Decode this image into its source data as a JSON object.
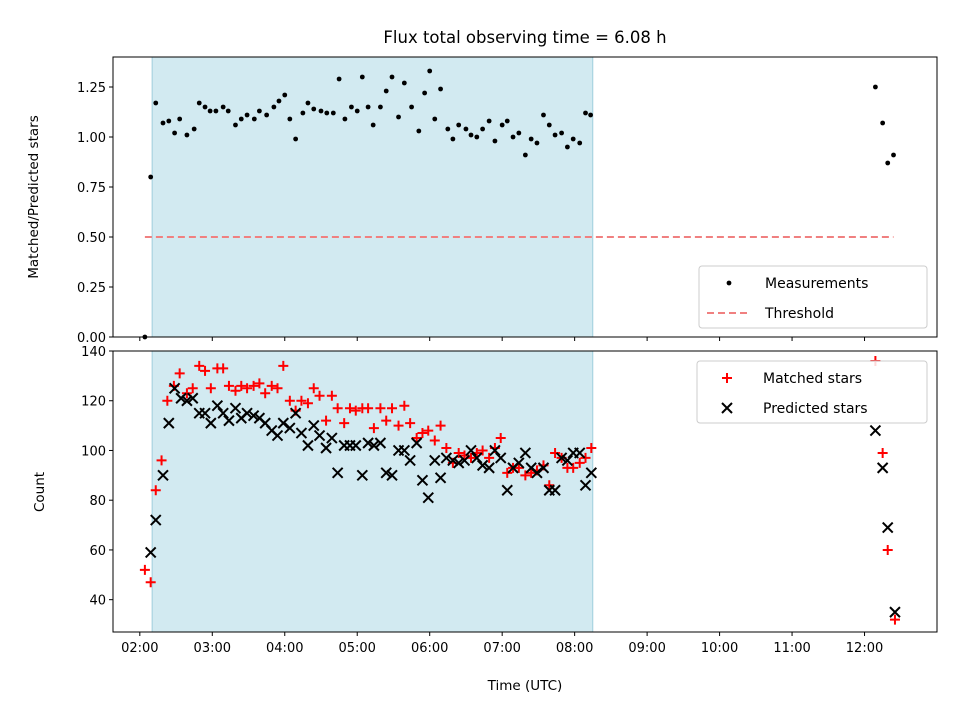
{
  "chart_data": [
    {
      "type": "scatter",
      "title": "Flux total observing time = 6.08 h",
      "ylabel": "Matched/Predicted stars",
      "xlabel": "",
      "xlim": [
        1.63,
        13.0
      ],
      "ylim": [
        0,
        1.4
      ],
      "yticks": [
        0.0,
        0.25,
        0.5,
        0.75,
        1.0,
        1.25
      ],
      "ytick_labels": [
        "0.00",
        "0.25",
        "0.50",
        "0.75",
        "1.00",
        "1.25"
      ],
      "shaded_interval": [
        2.17,
        8.25
      ],
      "shaded_color": "#add8e6",
      "legend_position": "lower right",
      "series": [
        {
          "name": "Measurements",
          "marker": "dot",
          "color": "#000000",
          "points": [
            [
              2.07,
              0.0
            ],
            [
              2.15,
              0.8
            ],
            [
              2.22,
              1.17
            ],
            [
              2.32,
              1.07
            ],
            [
              2.4,
              1.08
            ],
            [
              2.48,
              1.02
            ],
            [
              2.55,
              1.09
            ],
            [
              2.65,
              1.01
            ],
            [
              2.75,
              1.04
            ],
            [
              2.82,
              1.17
            ],
            [
              2.9,
              1.15
            ],
            [
              2.97,
              1.13
            ],
            [
              3.05,
              1.13
            ],
            [
              3.15,
              1.15
            ],
            [
              3.22,
              1.13
            ],
            [
              3.32,
              1.06
            ],
            [
              3.4,
              1.09
            ],
            [
              3.48,
              1.11
            ],
            [
              3.58,
              1.09
            ],
            [
              3.65,
              1.13
            ],
            [
              3.75,
              1.11
            ],
            [
              3.85,
              1.15
            ],
            [
              3.92,
              1.18
            ],
            [
              4.0,
              1.21
            ],
            [
              4.07,
              1.09
            ],
            [
              4.15,
              0.99
            ],
            [
              4.25,
              1.12
            ],
            [
              4.32,
              1.17
            ],
            [
              4.4,
              1.14
            ],
            [
              4.5,
              1.13
            ],
            [
              4.58,
              1.12
            ],
            [
              4.67,
              1.12
            ],
            [
              4.75,
              1.29
            ],
            [
              4.83,
              1.09
            ],
            [
              4.92,
              1.15
            ],
            [
              5.0,
              1.13
            ],
            [
              5.07,
              1.3
            ],
            [
              5.15,
              1.15
            ],
            [
              5.22,
              1.06
            ],
            [
              5.32,
              1.15
            ],
            [
              5.4,
              1.23
            ],
            [
              5.48,
              1.3
            ],
            [
              5.57,
              1.1
            ],
            [
              5.65,
              1.27
            ],
            [
              5.75,
              1.15
            ],
            [
              5.85,
              1.03
            ],
            [
              5.93,
              1.22
            ],
            [
              6.0,
              1.33
            ],
            [
              6.07,
              1.09
            ],
            [
              6.15,
              1.24
            ],
            [
              6.25,
              1.04
            ],
            [
              6.32,
              0.99
            ],
            [
              6.4,
              1.06
            ],
            [
              6.5,
              1.04
            ],
            [
              6.57,
              1.01
            ],
            [
              6.65,
              1.0
            ],
            [
              6.73,
              1.04
            ],
            [
              6.82,
              1.08
            ],
            [
              6.9,
              0.98
            ],
            [
              7.0,
              1.06
            ],
            [
              7.07,
              1.08
            ],
            [
              7.15,
              1.0
            ],
            [
              7.23,
              1.02
            ],
            [
              7.32,
              0.91
            ],
            [
              7.4,
              0.99
            ],
            [
              7.48,
              0.97
            ],
            [
              7.57,
              1.11
            ],
            [
              7.65,
              1.06
            ],
            [
              7.73,
              1.01
            ],
            [
              7.82,
              1.02
            ],
            [
              7.9,
              0.95
            ],
            [
              7.98,
              0.99
            ],
            [
              8.07,
              0.97
            ],
            [
              8.15,
              1.12
            ],
            [
              8.22,
              1.11
            ],
            [
              12.15,
              1.25
            ],
            [
              12.25,
              1.07
            ],
            [
              12.32,
              0.87
            ],
            [
              12.4,
              0.91
            ]
          ]
        },
        {
          "name": "Threshold",
          "marker": "dashed-line",
          "color": "#f08080",
          "points": [
            [
              2.07,
              0.5
            ],
            [
              12.4,
              0.5
            ]
          ]
        }
      ]
    },
    {
      "type": "scatter",
      "title": "",
      "ylabel": "Count",
      "xlabel": "Time (UTC)",
      "xlim": [
        1.63,
        13.0
      ],
      "ylim": [
        27,
        140
      ],
      "yticks": [
        40,
        60,
        80,
        100,
        120,
        140
      ],
      "ytick_labels": [
        "40",
        "60",
        "80",
        "100",
        "120",
        "140"
      ],
      "xticks": [
        2,
        3,
        4,
        5,
        6,
        7,
        8,
        9,
        10,
        11,
        12
      ],
      "xtick_labels": [
        "02:00",
        "03:00",
        "04:00",
        "05:00",
        "06:00",
        "07:00",
        "08:00",
        "09:00",
        "10:00",
        "11:00",
        "12:00"
      ],
      "shaded_interval": [
        2.17,
        8.25
      ],
      "shaded_color": "#add8e6",
      "legend_position": "upper right",
      "series": [
        {
          "name": "Matched stars",
          "marker": "plus",
          "color": "#ff0000",
          "points": [
            [
              2.07,
              52
            ],
            [
              2.15,
              47
            ],
            [
              2.22,
              84
            ],
            [
              2.3,
              96
            ],
            [
              2.38,
              120
            ],
            [
              2.47,
              126
            ],
            [
              2.55,
              131
            ],
            [
              2.65,
              123
            ],
            [
              2.73,
              125
            ],
            [
              2.82,
              134
            ],
            [
              2.9,
              132
            ],
            [
              2.98,
              125
            ],
            [
              3.07,
              133
            ],
            [
              3.15,
              133
            ],
            [
              3.23,
              126
            ],
            [
              3.32,
              124
            ],
            [
              3.4,
              126
            ],
            [
              3.48,
              125
            ],
            [
              3.57,
              126
            ],
            [
              3.65,
              127
            ],
            [
              3.73,
              123
            ],
            [
              3.82,
              126
            ],
            [
              3.9,
              125
            ],
            [
              3.98,
              134
            ],
            [
              4.07,
              120
            ],
            [
              4.15,
              116
            ],
            [
              4.23,
              120
            ],
            [
              4.32,
              119
            ],
            [
              4.4,
              125
            ],
            [
              4.48,
              122
            ],
            [
              4.57,
              112
            ],
            [
              4.65,
              122
            ],
            [
              4.73,
              117
            ],
            [
              4.82,
              111
            ],
            [
              4.9,
              117
            ],
            [
              4.98,
              116
            ],
            [
              5.07,
              117
            ],
            [
              5.15,
              117
            ],
            [
              5.23,
              109
            ],
            [
              5.32,
              117
            ],
            [
              5.4,
              112
            ],
            [
              5.48,
              117
            ],
            [
              5.57,
              110
            ],
            [
              5.65,
              118
            ],
            [
              5.73,
              111
            ],
            [
              5.82,
              105
            ],
            [
              5.9,
              107
            ],
            [
              5.98,
              108
            ],
            [
              6.07,
              104
            ],
            [
              6.15,
              110
            ],
            [
              6.23,
              101
            ],
            [
              6.32,
              95
            ],
            [
              6.4,
              99
            ],
            [
              6.48,
              98
            ],
            [
              6.57,
              97
            ],
            [
              6.65,
              99
            ],
            [
              6.73,
              100
            ],
            [
              6.82,
              97
            ],
            [
              6.9,
              101
            ],
            [
              6.98,
              105
            ],
            [
              7.07,
              91
            ],
            [
              7.15,
              93
            ],
            [
              7.23,
              93
            ],
            [
              7.32,
              90
            ],
            [
              7.4,
              91
            ],
            [
              7.48,
              92
            ],
            [
              7.57,
              94
            ],
            [
              7.65,
              86
            ],
            [
              7.73,
              99
            ],
            [
              7.82,
              97
            ],
            [
              7.9,
              93
            ],
            [
              7.98,
              93
            ],
            [
              8.07,
              95
            ],
            [
              8.15,
              97
            ],
            [
              8.23,
              101
            ],
            [
              12.15,
              136
            ],
            [
              12.25,
              99
            ],
            [
              12.32,
              60
            ],
            [
              12.42,
              32
            ]
          ]
        },
        {
          "name": "Predicted stars",
          "marker": "x",
          "color": "#000000",
          "points": [
            [
              2.15,
              59
            ],
            [
              2.22,
              72
            ],
            [
              2.32,
              90
            ],
            [
              2.4,
              111
            ],
            [
              2.48,
              125
            ],
            [
              2.57,
              121
            ],
            [
              2.65,
              120
            ],
            [
              2.73,
              121
            ],
            [
              2.82,
              115
            ],
            [
              2.9,
              115
            ],
            [
              2.98,
              111
            ],
            [
              3.07,
              118
            ],
            [
              3.15,
              115
            ],
            [
              3.23,
              112
            ],
            [
              3.32,
              117
            ],
            [
              3.4,
              113
            ],
            [
              3.48,
              115
            ],
            [
              3.57,
              114
            ],
            [
              3.65,
              113
            ],
            [
              3.73,
              111
            ],
            [
              3.82,
              108
            ],
            [
              3.9,
              106
            ],
            [
              3.98,
              111
            ],
            [
              4.07,
              109
            ],
            [
              4.15,
              115
            ],
            [
              4.23,
              107
            ],
            [
              4.32,
              102
            ],
            [
              4.4,
              110
            ],
            [
              4.48,
              106
            ],
            [
              4.57,
              101
            ],
            [
              4.65,
              105
            ],
            [
              4.73,
              91
            ],
            [
              4.82,
              102
            ],
            [
              4.9,
              102
            ],
            [
              4.98,
              102
            ],
            [
              5.07,
              90
            ],
            [
              5.15,
              103
            ],
            [
              5.23,
              102
            ],
            [
              5.32,
              103
            ],
            [
              5.4,
              91
            ],
            [
              5.48,
              90
            ],
            [
              5.57,
              100
            ],
            [
              5.65,
              100
            ],
            [
              5.73,
              96
            ],
            [
              5.82,
              103
            ],
            [
              5.9,
              88
            ],
            [
              5.98,
              81
            ],
            [
              6.07,
              96
            ],
            [
              6.15,
              89
            ],
            [
              6.23,
              97
            ],
            [
              6.32,
              96
            ],
            [
              6.4,
              95
            ],
            [
              6.48,
              96
            ],
            [
              6.57,
              100
            ],
            [
              6.65,
              97
            ],
            [
              6.73,
              94
            ],
            [
              6.82,
              93
            ],
            [
              6.9,
              100
            ],
            [
              6.98,
              97
            ],
            [
              7.07,
              84
            ],
            [
              7.15,
              93
            ],
            [
              7.23,
              95
            ],
            [
              7.32,
              99
            ],
            [
              7.4,
              93
            ],
            [
              7.48,
              91
            ],
            [
              7.57,
              93
            ],
            [
              7.65,
              84
            ],
            [
              7.73,
              84
            ],
            [
              7.82,
              97
            ],
            [
              7.9,
              96
            ],
            [
              7.98,
              99
            ],
            [
              8.07,
              99
            ],
            [
              8.15,
              86
            ],
            [
              8.23,
              91
            ],
            [
              12.15,
              108
            ],
            [
              12.25,
              93
            ],
            [
              12.32,
              69
            ],
            [
              12.42,
              35
            ]
          ]
        }
      ]
    }
  ]
}
